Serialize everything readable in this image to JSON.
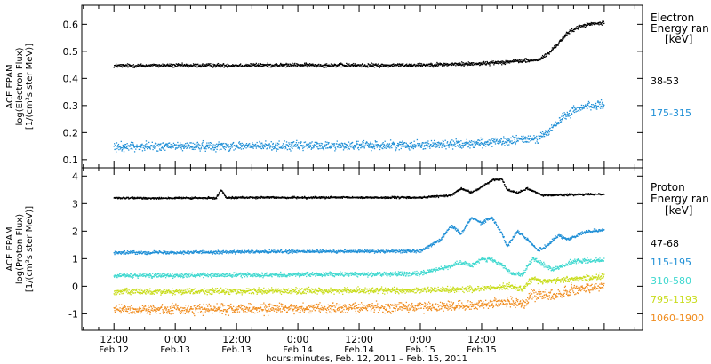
{
  "chart_data": [
    {
      "type": "scatter",
      "panel": "electron",
      "ylabel_lines": [
        "ACE EPAM",
        "log(Electron Flux)",
        "[1/(cm²s ster MeV)]"
      ],
      "ylim": [
        0.07,
        0.67
      ],
      "yticks": [
        0.1,
        0.2,
        0.3,
        0.4,
        0.5,
        0.6
      ],
      "ytick_labels": [
        "0.1",
        "0.2",
        "0.3",
        "0.4",
        "0.5",
        "0.6"
      ],
      "legend_title": [
        "Electron",
        "Energy ran",
        "[keV]"
      ],
      "series": [
        {
          "name": "38-53",
          "color": "#000000",
          "points": [
            [
              0.0,
              0.447
            ],
            [
              18.0,
              0.448
            ],
            [
              36.0,
              0.449
            ],
            [
              54.0,
              0.448
            ],
            [
              66.0,
              0.452
            ],
            [
              72.0,
              0.455
            ],
            [
              76.0,
              0.46
            ],
            [
              80.0,
              0.465
            ],
            [
              83.0,
              0.468
            ],
            [
              85.0,
              0.49
            ],
            [
              87.0,
              0.53
            ],
            [
              89.0,
              0.57
            ],
            [
              91.0,
              0.59
            ],
            [
              93.0,
              0.6
            ],
            [
              96.0,
              0.605
            ]
          ],
          "noise": 0.006
        },
        {
          "name": "175-315",
          "color": "#1f8fd6",
          "points": [
            [
              0.0,
              0.148
            ],
            [
              18.0,
              0.15
            ],
            [
              36.0,
              0.151
            ],
            [
              54.0,
              0.153
            ],
            [
              66.0,
              0.157
            ],
            [
              72.0,
              0.162
            ],
            [
              76.0,
              0.165
            ],
            [
              80.0,
              0.175
            ],
            [
              83.0,
              0.18
            ],
            [
              85.0,
              0.2
            ],
            [
              87.0,
              0.24
            ],
            [
              89.0,
              0.27
            ],
            [
              91.0,
              0.29
            ],
            [
              93.0,
              0.3
            ],
            [
              96.0,
              0.3
            ]
          ],
          "noise": 0.014
        }
      ]
    },
    {
      "type": "scatter",
      "panel": "proton",
      "ylabel_lines": [
        "ACE EPAM",
        "log(Proton Flux)",
        "[1/(cm²s ster MeV)]"
      ],
      "ylim": [
        -1.6,
        4.3
      ],
      "yticks": [
        -1,
        0,
        1,
        2,
        3,
        4
      ],
      "ytick_labels": [
        "-1",
        "0",
        "1",
        "2",
        "3",
        "4"
      ],
      "legend_title": [
        "Proton",
        "Energy ran",
        "[keV]"
      ],
      "series": [
        {
          "name": "47-68",
          "color": "#000000",
          "points": [
            [
              0.0,
              3.2
            ],
            [
              20.0,
              3.2
            ],
            [
              21.0,
              3.5
            ],
            [
              22.0,
              3.22
            ],
            [
              60.0,
              3.22
            ],
            [
              66.0,
              3.3
            ],
            [
              68.0,
              3.55
            ],
            [
              70.0,
              3.4
            ],
            [
              72.0,
              3.6
            ],
            [
              74.0,
              3.85
            ],
            [
              76.0,
              3.9
            ],
            [
              77.0,
              3.5
            ],
            [
              79.0,
              3.4
            ],
            [
              81.0,
              3.55
            ],
            [
              84.0,
              3.3
            ],
            [
              96.0,
              3.35
            ]
          ],
          "noise": 0.03
        },
        {
          "name": "115-195",
          "color": "#1f8fd6",
          "points": [
            [
              0.0,
              1.22
            ],
            [
              60.0,
              1.28
            ],
            [
              64.0,
              1.7
            ],
            [
              66.0,
              2.2
            ],
            [
              68.0,
              1.9
            ],
            [
              70.0,
              2.5
            ],
            [
              72.0,
              2.3
            ],
            [
              74.0,
              2.5
            ],
            [
              76.0,
              1.9
            ],
            [
              77.0,
              1.45
            ],
            [
              79.0,
              2.0
            ],
            [
              81.0,
              1.7
            ],
            [
              83.0,
              1.3
            ],
            [
              85.0,
              1.5
            ],
            [
              87.0,
              1.85
            ],
            [
              89.0,
              1.7
            ],
            [
              92.0,
              1.95
            ],
            [
              96.0,
              2.05
            ]
          ],
          "noise": 0.05
        },
        {
          "name": "310-580",
          "color": "#3ed8cf",
          "points": [
            [
              0.0,
              0.38
            ],
            [
              60.0,
              0.45
            ],
            [
              64.0,
              0.65
            ],
            [
              68.0,
              0.85
            ],
            [
              70.0,
              0.75
            ],
            [
              72.0,
              1.0
            ],
            [
              74.0,
              0.95
            ],
            [
              76.0,
              0.75
            ],
            [
              78.0,
              0.45
            ],
            [
              80.0,
              0.4
            ],
            [
              82.0,
              1.0
            ],
            [
              84.0,
              0.8
            ],
            [
              86.0,
              0.6
            ],
            [
              90.0,
              0.9
            ],
            [
              96.0,
              0.95
            ]
          ],
          "noise": 0.07
        },
        {
          "name": "795-1193",
          "color": "#c8dc1a",
          "points": [
            [
              0.0,
              -0.2
            ],
            [
              60.0,
              -0.15
            ],
            [
              70.0,
              -0.1
            ],
            [
              78.0,
              0.0
            ],
            [
              80.0,
              -0.1
            ],
            [
              82.0,
              0.3
            ],
            [
              84.0,
              0.15
            ],
            [
              86.0,
              0.2
            ],
            [
              96.0,
              0.35
            ]
          ],
          "noise": 0.09
        },
        {
          "name": "1060-1900",
          "color": "#f08c1e",
          "points": [
            [
              0.0,
              -0.85
            ],
            [
              60.0,
              -0.75
            ],
            [
              70.0,
              -0.7
            ],
            [
              78.0,
              -0.55
            ],
            [
              80.0,
              -0.65
            ],
            [
              82.0,
              -0.3
            ],
            [
              86.0,
              -0.35
            ],
            [
              90.0,
              -0.15
            ],
            [
              96.0,
              0.0
            ]
          ],
          "noise": 0.16
        }
      ]
    }
  ],
  "x_axis": {
    "xlim": [
      -6.3,
      103.5
    ],
    "ticks": [
      {
        "pos": 0,
        "time": "12:00",
        "date": "Feb.12"
      },
      {
        "pos": 12,
        "time": "0:00",
        "date": "Feb.13"
      },
      {
        "pos": 24,
        "time": "12:00",
        "date": "Feb.13"
      },
      {
        "pos": 36,
        "time": "0:00",
        "date": "Feb.14"
      },
      {
        "pos": 48,
        "time": "12:00",
        "date": "Feb.14"
      },
      {
        "pos": 60,
        "time": "0:00",
        "date": "Feb.15"
      },
      {
        "pos": 72,
        "time": "12:00",
        "date": "Feb.15"
      }
    ],
    "label": "hours:minutes, Feb. 12, 2011 – Feb. 15, 2011"
  }
}
